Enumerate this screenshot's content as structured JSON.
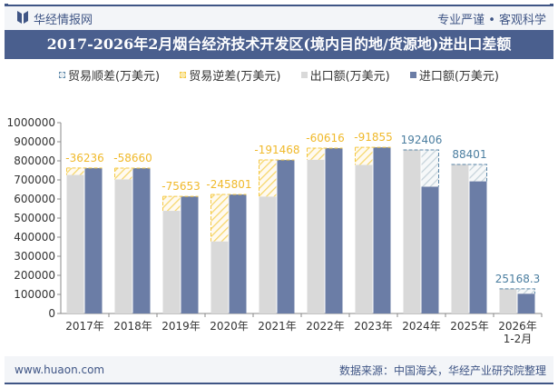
{
  "header": {
    "brand": "华经情报网",
    "slogan": "专业严谨 • 客观科学"
  },
  "footer": {
    "website": "www.huaon.com",
    "source": "数据来源：中国海关，华经产业研究院整理"
  },
  "colors": {
    "surplus": "#5b86a8",
    "deficit": "#f5c842",
    "export": "#d9d9d9",
    "import": "#6b7da6",
    "title_bg": "#4a5f8e"
  },
  "chart_data": {
    "type": "bar",
    "title": "2017-2026年2月烟台经济技术开发区(境内目的地/货源地)进出口差额",
    "legend": [
      "贸易顺差(万美元)",
      "贸易逆差(万美元)",
      "出口额(万美元)",
      "进口额(万美元)"
    ],
    "legend_position": "top",
    "categories": [
      "2017年",
      "2018年",
      "2019年",
      "2020年",
      "2021年",
      "2022年",
      "2023年",
      "2024年",
      "2025年",
      "2026年\n1-2月"
    ],
    "series": [
      {
        "name": "出口额(万美元)",
        "values": [
          726000,
          703000,
          538000,
          378000,
          613000,
          806000,
          779000,
          857000,
          781000,
          129000
        ]
      },
      {
        "name": "进口额(万美元)",
        "values": [
          762236,
          761660,
          613653,
          623801,
          804468,
          866616,
          870855,
          664594,
          692599,
          103832
        ]
      }
    ],
    "balance_labels": [
      "-36236",
      "-58660",
      "-75653",
      "-245801",
      "-191468",
      "-60616",
      "-91855",
      "192406",
      "88401",
      "25168.3"
    ],
    "yticks": [
      "0",
      "100000",
      "200000",
      "300000",
      "400000",
      "500000",
      "600000",
      "700000",
      "800000",
      "900000",
      "1000000"
    ],
    "ylim": [
      0,
      1000000
    ],
    "grid": false
  }
}
